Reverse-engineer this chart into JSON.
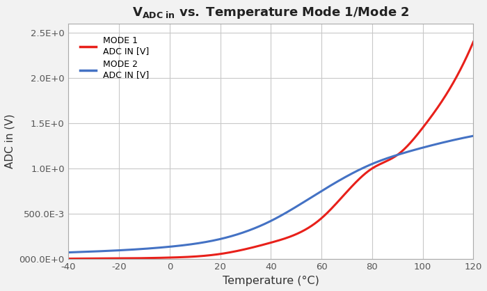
{
  "xlabel": "Temperature (°C)",
  "ylabel": "ADC in (V)",
  "xlim": [
    -40,
    120
  ],
  "ylim": [
    0.0,
    2.6
  ],
  "ytick_vals": [
    0.0,
    0.5,
    1.0,
    1.5,
    2.0,
    2.5
  ],
  "ytick_labels": [
    "000.0E+0",
    "500.0E-3",
    "1.0E+0",
    "1.5E+0",
    "2.0E+0",
    "2.5E+0"
  ],
  "xticks": [
    -40,
    -20,
    0,
    20,
    40,
    60,
    80,
    100,
    120
  ],
  "mode1_color": "#e8201a",
  "mode2_color": "#4472c4",
  "background_color": "#f2f2f2",
  "plot_bg_color": "#ffffff",
  "grid_color": "#c8c8c8",
  "legend_mode1": "MODE 1\nADC IN [V]",
  "legend_mode2": "MODE 2\nADC IN [V]",
  "linewidth": 2.2,
  "title": "V",
  "title_sub": "ADC in",
  "title_rest": " vs. Temperature Mode 1/Mode 2"
}
